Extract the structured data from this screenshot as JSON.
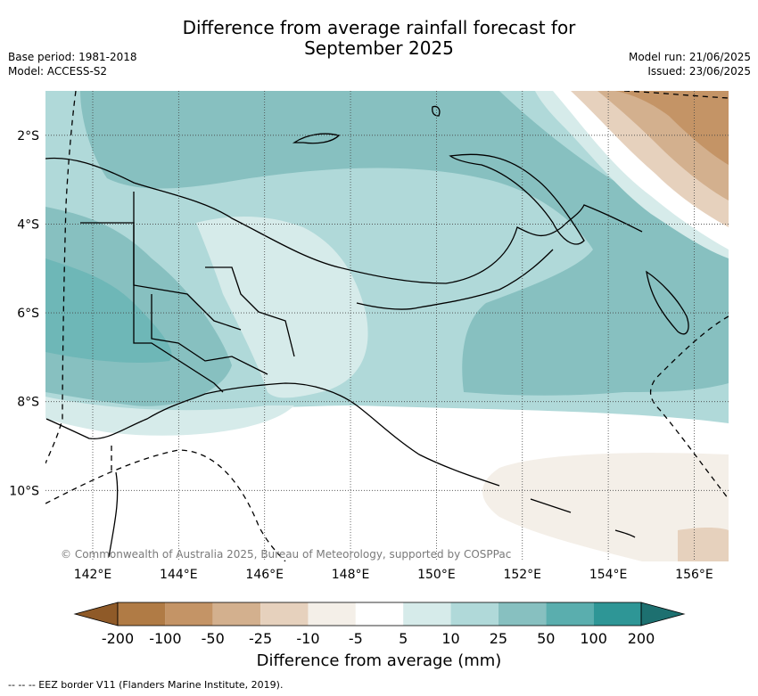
{
  "title_line1": "Difference from average rainfall forecast for",
  "title_line2": "September 2025",
  "meta_left": [
    "Base period: 1981-2018",
    "Model: ACCESS-S2"
  ],
  "meta_right": [
    "Model run: 21/06/2025",
    "Issued: 23/06/2025"
  ],
  "map": {
    "lon_ticks": [
      "142°E",
      "144°E",
      "146°E",
      "148°E",
      "150°E",
      "152°E",
      "154°E",
      "156°E"
    ],
    "lon_values": [
      142,
      144,
      146,
      148,
      150,
      152,
      154,
      156
    ],
    "lat_ticks": [
      "2°S",
      "4°S",
      "6°S",
      "8°S",
      "10°S"
    ],
    "lat_values": [
      -2,
      -4,
      -6,
      -8,
      -10
    ],
    "lon_range": [
      140.9,
      156.8
    ],
    "lat_range": [
      -1.0,
      -11.6
    ],
    "gridlines": "dotted",
    "credit": "© Commonwealth of Australia 2025, Bureau of Meteorology, supported by COSPPac"
  },
  "colorbar": {
    "labels": [
      "-200",
      "-100",
      "-50",
      "-25",
      "-10",
      "-5",
      "5",
      "10",
      "25",
      "50",
      "100",
      "200"
    ],
    "colors": [
      "#8f5a28",
      "#b07b45",
      "#c49466",
      "#d3b08e",
      "#e6d1bd",
      "#f4efe8",
      "#ffffff",
      "#d6ebea",
      "#b0d9d9",
      "#87c0c0",
      "#5aaeae",
      "#2e9696",
      "#1d7070"
    ],
    "title": "Difference from average (mm)",
    "extend": "both"
  },
  "footer": "--  --  -- EEZ border V11 (Flanders Marine Institute, 2019)."
}
